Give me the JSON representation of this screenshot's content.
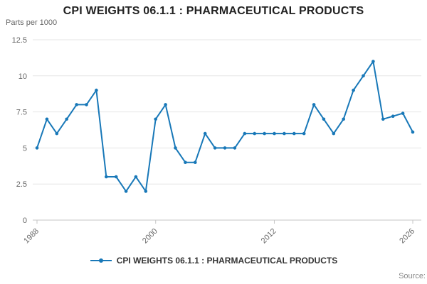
{
  "header": {
    "title": "CPI WEIGHTS 06.1.1 : PHARMACEUTICAL PRODUCTS",
    "units_label": "Parts per 1000"
  },
  "legend": {
    "label": "CPI WEIGHTS 06.1.1 : PHARMACEUTICAL PRODUCTS"
  },
  "footer": {
    "source_label": "Source:"
  },
  "chart_data": {
    "type": "line",
    "title": "CPI WEIGHTS 06.1.1 : PHARMACEUTICAL PRODUCTS",
    "ylabel": "Parts per 1000",
    "xlabel": "",
    "series_name": "CPI WEIGHTS 06.1.1 : PHARMACEUTICAL PRODUCTS",
    "x": [
      1988,
      1989,
      1990,
      1991,
      1992,
      1993,
      1994,
      1995,
      1996,
      1997,
      1998,
      1999,
      2000,
      2001,
      2002,
      2003,
      2004,
      2005,
      2006,
      2007,
      2008,
      2009,
      2010,
      2011,
      2012,
      2013,
      2014,
      2015,
      2016,
      2017,
      2018,
      2019,
      2020,
      2021,
      2022,
      2023,
      2024,
      2025,
      2026
    ],
    "values": [
      5,
      7,
      6,
      7,
      8,
      8,
      9,
      3,
      3,
      2,
      3,
      2,
      7,
      8,
      5,
      4,
      4,
      6,
      5,
      5,
      5,
      6,
      6,
      6,
      6,
      6,
      6,
      6,
      8,
      7,
      6,
      7,
      9,
      10,
      11,
      7,
      7.2,
      7.4,
      6.1
    ],
    "ylim": [
      0,
      12.5
    ],
    "yticks": [
      0,
      2.5,
      5,
      7.5,
      10,
      12.5
    ],
    "ytick_labels": [
      "0",
      "2.5",
      "5",
      "7.5",
      "10",
      "12.5"
    ],
    "xticks": [
      1988,
      2000,
      2012,
      2026
    ],
    "grid": true,
    "legend_position": "bottom",
    "line_color": "#1878b8",
    "grid_color": "#e6e6e6",
    "axis_color": "#c6c6c6",
    "tick_label_color": "#666666"
  }
}
